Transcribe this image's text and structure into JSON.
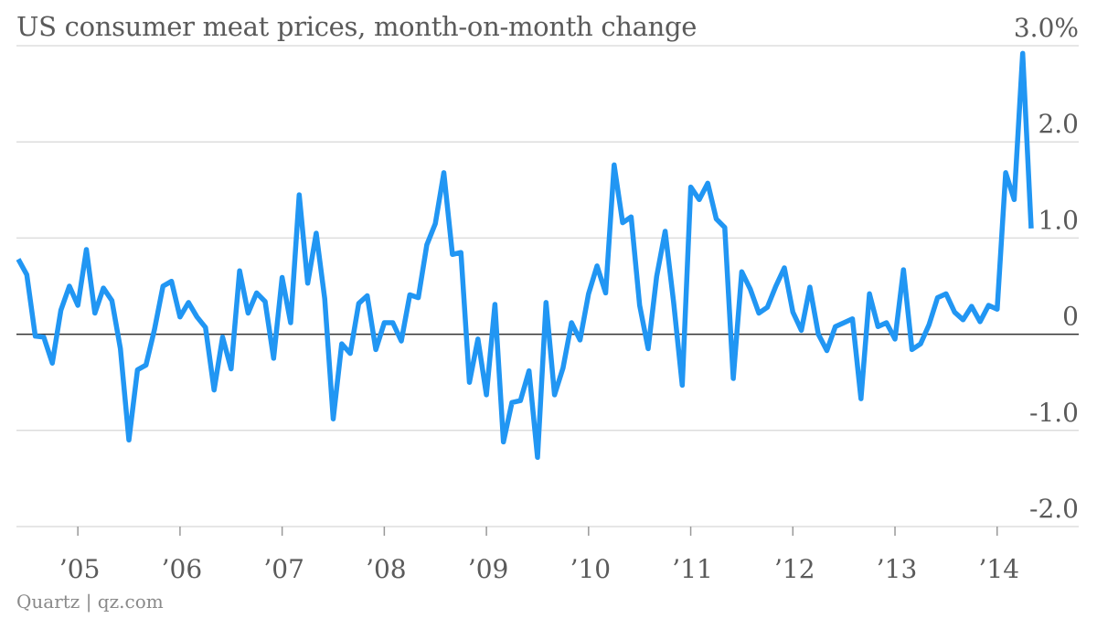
{
  "title": "US consumer meat prices, month-on-month change",
  "credit": "Quartz | qz.com",
  "colors": {
    "line": "#2196f3",
    "grid": "#dddddd",
    "zero": "#333333",
    "text": "#5a5a5a"
  },
  "chart_data": {
    "type": "line",
    "title": "US consumer meat prices, month-on-month change",
    "xlabel": "",
    "ylabel": "",
    "unit": "%",
    "ylim": [
      -2.0,
      3.0
    ],
    "yticks": [
      3.0,
      2.0,
      1.0,
      0,
      -1.0,
      -2.0
    ],
    "ytick_labels": [
      "3.0%",
      "2.0",
      "1.0",
      "0",
      "-1.0",
      "-2.0"
    ],
    "xticks": [
      "’05",
      "’06",
      "’07",
      "’08",
      "’09",
      "’10",
      "’11",
      "’12",
      "’13",
      "’14"
    ],
    "x_start": "2004-06",
    "x_end": "2014-04",
    "grid": true,
    "series": [
      {
        "values": [
          0.78,
          0.62,
          -0.02,
          -0.03,
          -0.3,
          0.25,
          0.5,
          0.3,
          0.88,
          0.22,
          0.48,
          0.35,
          -0.15,
          -1.1,
          -0.37,
          -0.32,
          0.05,
          0.5,
          0.55,
          0.18,
          0.33,
          0.18,
          0.07,
          -0.58,
          -0.03,
          -0.36,
          0.66,
          0.22,
          0.43,
          0.34,
          -0.25,
          0.59,
          0.12,
          1.45,
          0.53,
          1.05,
          0.37,
          -0.88,
          -0.1,
          -0.2,
          0.32,
          0.4,
          -0.16,
          0.12,
          0.12,
          -0.07,
          0.41,
          0.38,
          0.93,
          1.15,
          1.68,
          0.83,
          0.85,
          -0.5,
          -0.05,
          -0.63,
          0.31,
          -1.12,
          -0.71,
          -0.69,
          -0.38,
          -1.28,
          0.33,
          -0.63,
          -0.35,
          0.12,
          -0.06,
          0.42,
          0.71,
          0.43,
          1.76,
          1.16,
          1.22,
          0.3,
          -0.15,
          0.6,
          1.07,
          0.33,
          -0.53,
          1.53,
          1.4,
          1.57,
          1.2,
          1.11,
          -0.46,
          0.65,
          0.47,
          0.22,
          0.28,
          0.5,
          0.69,
          0.23,
          0.04,
          0.49,
          0.0,
          -0.17,
          0.08,
          0.12,
          0.16,
          -0.67,
          0.42,
          0.08,
          0.12,
          -0.05,
          0.67,
          -0.16,
          -0.1,
          0.1,
          0.38,
          0.42,
          0.23,
          0.15,
          0.29,
          0.13,
          0.3,
          0.26,
          1.68,
          1.4,
          2.92,
          1.1
        ]
      }
    ]
  }
}
